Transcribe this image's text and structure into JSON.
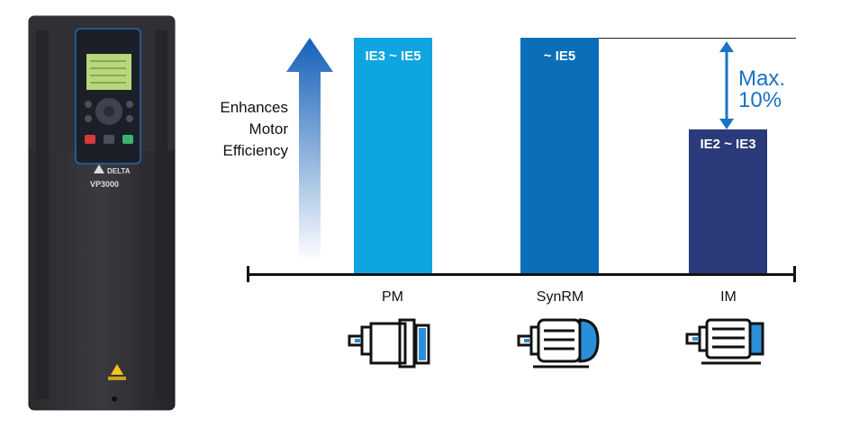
{
  "device": {
    "brand": "DELTA",
    "model": "VP3000"
  },
  "arrow_label": [
    "Enhances",
    "Motor",
    "Efficiency"
  ],
  "bars": [
    {
      "label": "IE3 ~ IE5",
      "category": "PM",
      "color": "#0ea5e0",
      "relative_height": 1.0
    },
    {
      "label": "~ IE5",
      "category": "SynRM",
      "color": "#0a6fb8",
      "relative_height": 1.0
    },
    {
      "label": "IE2 ~ IE3",
      "category": "IM",
      "color": "#2b3a7a",
      "relative_height": 0.6
    }
  ],
  "gap_annotation": {
    "line1": "Max.",
    "line2": "10%"
  },
  "colors": {
    "accent": "#1a73c4",
    "axis": "#111111"
  }
}
